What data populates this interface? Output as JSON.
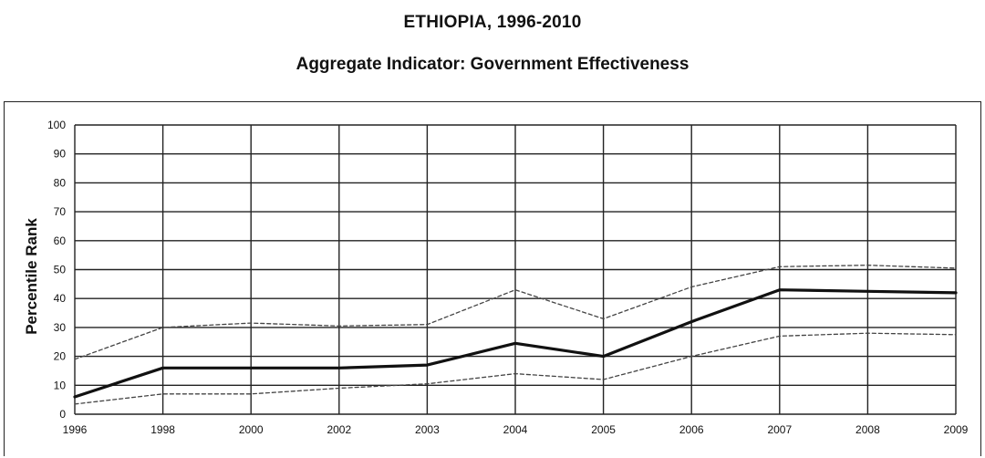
{
  "title": "ETHIOPIA, 1996-2010",
  "subtitle": "Aggregate Indicator: Government Effectiveness",
  "chart_data": {
    "type": "line",
    "title": "ETHIOPIA, 1996-2010",
    "subtitle": "Aggregate Indicator: Government Effectiveness",
    "xlabel": "",
    "ylabel": "Percentile Rank",
    "categories": [
      "1996",
      "1998",
      "2000",
      "2002",
      "2003",
      "2004",
      "2005",
      "2006",
      "2007",
      "2008",
      "2009"
    ],
    "ylim": [
      0,
      100
    ],
    "yticks": [
      0,
      10,
      20,
      30,
      40,
      50,
      60,
      70,
      80,
      90,
      100
    ],
    "grid": true,
    "series": [
      {
        "values": [
          6,
          16,
          16,
          16,
          17,
          24.5,
          20,
          32,
          43,
          42.5,
          42
        ],
        "style": "solid",
        "color": "#111111"
      },
      {
        "values": [
          19,
          30,
          31.5,
          30.5,
          31,
          43,
          33,
          44,
          51,
          51.5,
          50.5
        ],
        "style": "dashed",
        "color": "#444444"
      },
      {
        "values": [
          3.5,
          7,
          7,
          9,
          10.5,
          14,
          12,
          20,
          27,
          28,
          27.5
        ],
        "style": "dashed",
        "color": "#444444"
      }
    ]
  }
}
